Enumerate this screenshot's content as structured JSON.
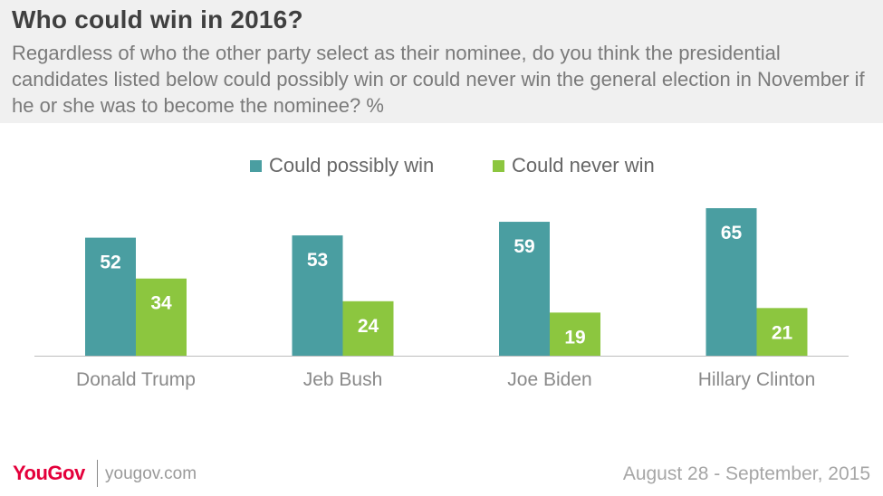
{
  "header": {
    "title": "Who could win in 2016?",
    "subtitle": "Regardless of who the other party select as their nominee, do you think the presidential candidates listed below could possibly win or could never win the general election in November if he or she was to become the nominee? %"
  },
  "colors": {
    "possibly": "#4a9ea1",
    "never": "#8cc63f",
    "header_bg": "#f0f0f0",
    "brand": "#e4003b"
  },
  "chart_data": {
    "type": "bar",
    "title": "Who could win in 2016?",
    "categories": [
      "Donald Trump",
      "Jeb Bush",
      "Joe Biden",
      "Hillary Clinton"
    ],
    "series": [
      {
        "name": "Could possibly win",
        "values": [
          52,
          53,
          59,
          65
        ]
      },
      {
        "name": "Could never win",
        "values": [
          34,
          24,
          19,
          21
        ]
      }
    ],
    "legend_position": "top-center",
    "grid": false,
    "ylim": [
      0,
      70
    ]
  },
  "footer": {
    "logo": "YouGov",
    "site": "yougov.com",
    "date": "August 28 - September, 2015"
  }
}
